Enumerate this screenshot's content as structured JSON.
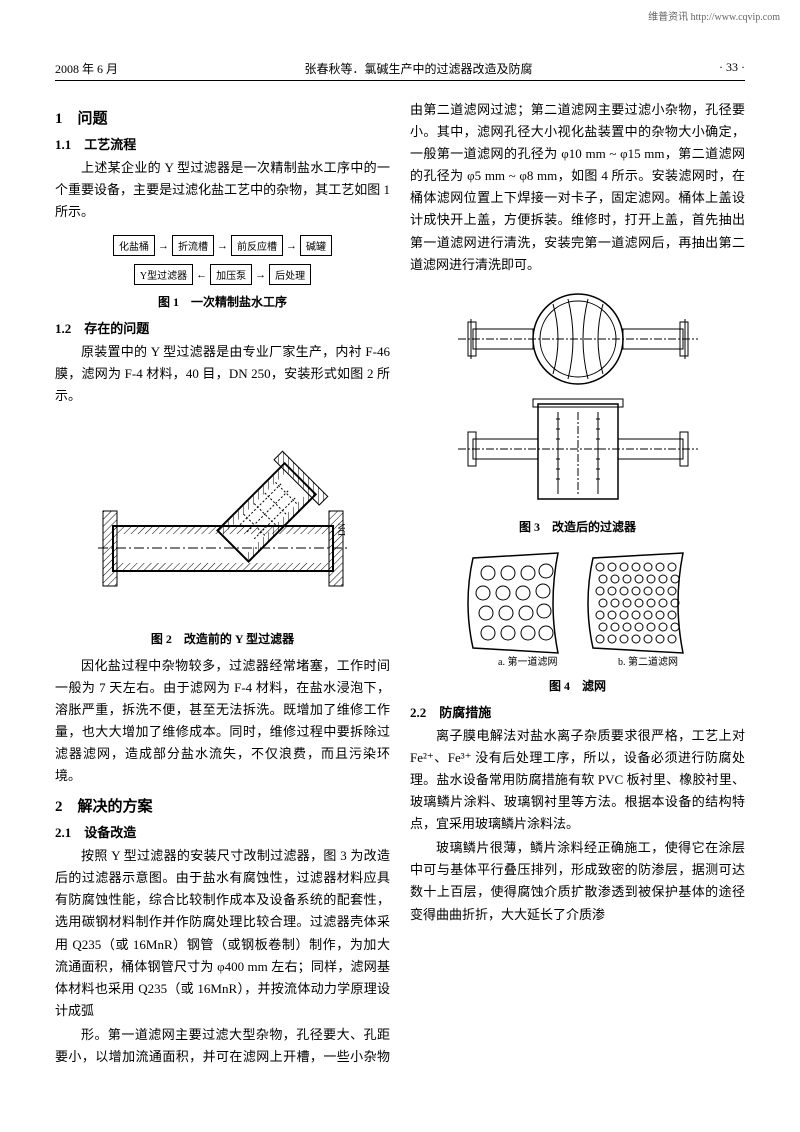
{
  "watermark": "维普资讯 http://www.cqvip.com",
  "header": {
    "left": "2008 年 6 月",
    "center": "张春秋等．氯碱生产中的过滤器改造及防腐",
    "right": "· 33 ·"
  },
  "sec1": {
    "title": "1　问题",
    "sub1": {
      "title": "1.1　工艺流程",
      "p1": "上述某企业的 Y 型过滤器是一次精制盐水工序中的一个重要设备，主要是过滤化盐工艺中的杂物，其工艺如图 1 所示。"
    },
    "fig1": {
      "boxes": [
        "化盐桶",
        "折流槽",
        "前反应槽",
        "碱罐",
        "Y型过滤器",
        "加压泵",
        "后处理"
      ],
      "caption": "图 1　一次精制盐水工序"
    },
    "sub2": {
      "title": "1.2　存在的问题",
      "p1": "原装置中的 Y 型过滤器是由专业厂家生产，内衬 F-46 膜，滤网为 F-4 材料，40 目，DN 250，安装形式如图 2 所示。"
    },
    "fig2": {
      "caption": "图 2　改造前的 Y 型过滤器",
      "label": "DN"
    },
    "p_after_fig2_1": "因化盐过程中杂物较多，过滤器经常堵塞，工作时间一般为 7 天左右。由于滤网为 F-4 材料，在盐水浸泡下，溶胀严重，拆洗不便，甚至无法拆洗。既增加了维修工作量，也大大增加了维修成本。同时，维修过程中要拆除过滤器滤网，造成部分盐水流失，不仅浪费，而且污染环境。"
  },
  "sec2": {
    "title": "2　解决的方案",
    "sub1": {
      "title": "2.1　设备改造",
      "p1": "按照 Y 型过滤器的安装尺寸改制过滤器，图 3 为改造后的过滤器示意图。由于盐水有腐蚀性，过滤器材料应具有防腐蚀性能，综合比较制作成本及设备系统的配套性，选用碳钢材料制作并作防腐处理比较合理。过滤器壳体采用 Q235（或 16MnR）钢管（或钢板卷制）制作，为加大流通面积，桶体钢管尺寸为 φ400 mm 左右；同样，滤网基体材料也采用 Q235（或 16MnR），并按流体动力学原理设计成弧"
    },
    "col2_p1": "形。第一道滤网主要过滤大型杂物，孔径要大、孔距要小，以增加流通面积，并可在滤网上开槽，一些小杂物由第二道滤网过滤；第二道滤网主要过滤小杂物，孔径要小。其中，滤网孔径大小视化盐装置中的杂物大小确定，一般第一道滤网的孔径为 φ10 mm ~ φ15 mm，第二道滤网的孔径为 φ5 mm ~ φ8 mm，如图 4 所示。安装滤网时，在桶体滤网位置上下焊接一对卡子，固定滤网。桶体上盖设计成快开上盖，方便拆装。维修时，打开上盖，首先抽出第一道滤网进行清洗，安装完第一道滤网后，再抽出第二道滤网进行清洗即可。",
    "fig3": {
      "caption": "图 3　改造后的过滤器"
    },
    "fig4": {
      "label_a": "a. 第一道滤网",
      "label_b": "b. 第二道滤网",
      "caption": "图 4　滤网"
    },
    "sub2": {
      "title": "2.2　防腐措施",
      "p1": "离子膜电解法对盐水离子杂质要求很严格，工艺上对 Fe²⁺、Fe³⁺ 没有后处理工序，所以，设备必须进行防腐处理。盐水设备常用防腐措施有软 PVC 板衬里、橡胶衬里、玻璃鳞片涂料、玻璃钢衬里等方法。根据本设备的结构特点，宜采用玻璃鳞片涂料法。",
      "p2": "玻璃鳞片很薄，鳞片涂料经正确施工，使得它在涂层中可与基体平行叠压排列，形成致密的防渗层，据测可达数十上百层，使得腐蚀介质扩散渗透到被保护基体的途径变得曲曲折折，大大延长了介质渗"
    }
  }
}
